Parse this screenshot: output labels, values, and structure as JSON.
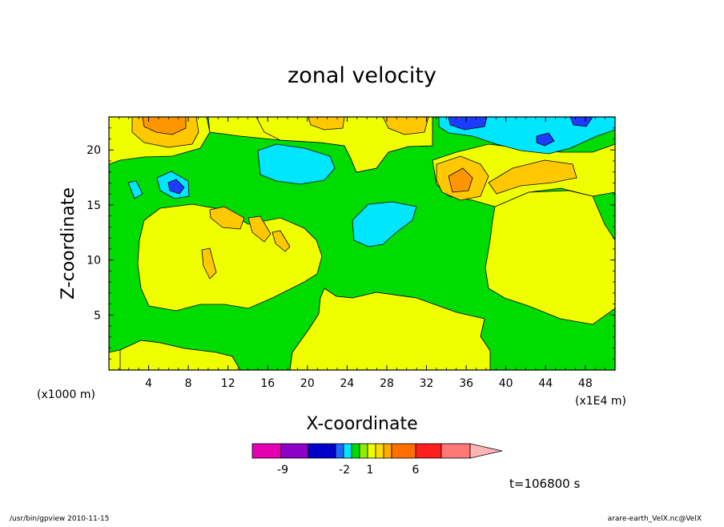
{
  "chart_data": {
    "type": "heatmap",
    "title": "zonal velocity",
    "xlabel": "X-coordinate",
    "ylabel": "Z-coordinate",
    "x_unit_left": "(x1000 m)",
    "x_unit_right": "(x1E4 m)",
    "x_ticks": [
      "4",
      "8",
      "12",
      "16",
      "20",
      "24",
      "28",
      "32",
      "36",
      "40",
      "44",
      "48"
    ],
    "y_ticks": [
      "5",
      "10",
      "15",
      "20"
    ],
    "xlim": [
      0,
      51
    ],
    "ylim": [
      0,
      23
    ],
    "time_label": "t=106800 s",
    "colorbar": {
      "tick_labels": [
        "-9",
        "-2",
        "1",
        "6"
      ],
      "colors": [
        "#e600b4",
        "#8c00c8",
        "#0000c8",
        "#1e64ff",
        "#00e6ff",
        "#00dc00",
        "#8cf000",
        "#f0ff00",
        "#ffdc00",
        "#ffaa00",
        "#ff6e00",
        "#ff1e1e",
        "#ff7878",
        "#ffb4b4"
      ]
    },
    "region_colors": {
      "base_yellow": "#f0ff00",
      "green": "#00dc00",
      "light_orange": "#ffc800",
      "orange": "#ff9600",
      "cyan": "#00e6ff",
      "blue": "#1e3cff"
    }
  },
  "footer": {
    "left": "/usr/bin/gpview   2010-11-15",
    "right": "arare-earth_VelX.nc@VelX"
  }
}
